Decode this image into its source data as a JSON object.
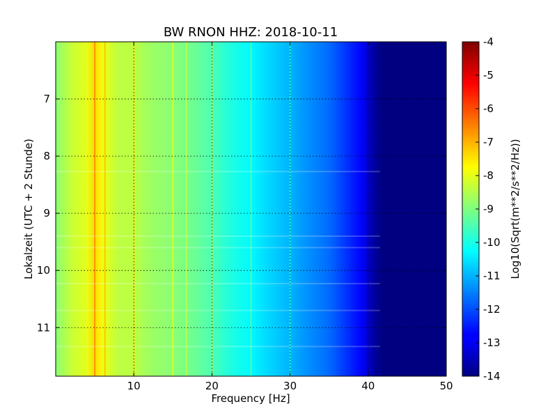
{
  "chart_data": {
    "type": "heatmap",
    "title": "BW RNON HHZ: 2018-10-11",
    "xlabel": "Frequency [Hz]",
    "ylabel": "Lokalzeit (UTC + 2 Stunde)",
    "colorbar_label": "Log10(Sqrt(m**2/s**2/Hz))",
    "xlim": [
      0,
      50
    ],
    "ylim": [
      11.85,
      6.0
    ],
    "y_inverted": true,
    "grid": true,
    "colormap": "jet",
    "x_ticks": [
      "10",
      "20",
      "30",
      "40",
      "50"
    ],
    "y_ticks": [
      "7",
      "8",
      "9",
      "10",
      "11"
    ],
    "colorbar_ticks": [
      "-4",
      "-5",
      "-6",
      "-7",
      "-8",
      "-9",
      "-10",
      "-11",
      "-12",
      "-13",
      "-14"
    ],
    "color_range": [
      -14,
      -4
    ],
    "profile_frequency_hz": [
      0,
      2,
      4,
      5,
      6,
      8,
      10,
      12,
      15,
      17,
      20,
      22,
      25,
      27,
      30,
      32,
      35,
      37,
      39,
      40,
      41,
      42,
      45,
      50
    ],
    "profile_log10_psd": [
      -8.9,
      -8.3,
      -8.0,
      -7.4,
      -7.9,
      -8.4,
      -8.4,
      -8.7,
      -8.9,
      -9.1,
      -9.5,
      -9.9,
      -10.3,
      -10.6,
      -11.0,
      -11.3,
      -11.7,
      -12.2,
      -12.7,
      -13.2,
      -13.8,
      -14.0,
      -14.0,
      -14.0
    ],
    "spectral_lines_hz": [
      5.0,
      6.3,
      10.0,
      15.0,
      16.7,
      20.0,
      25.0,
      30.0
    ],
    "highlight_rows_local_time": [
      8.27,
      9.4,
      9.6,
      10.23,
      10.7,
      11.33
    ]
  }
}
